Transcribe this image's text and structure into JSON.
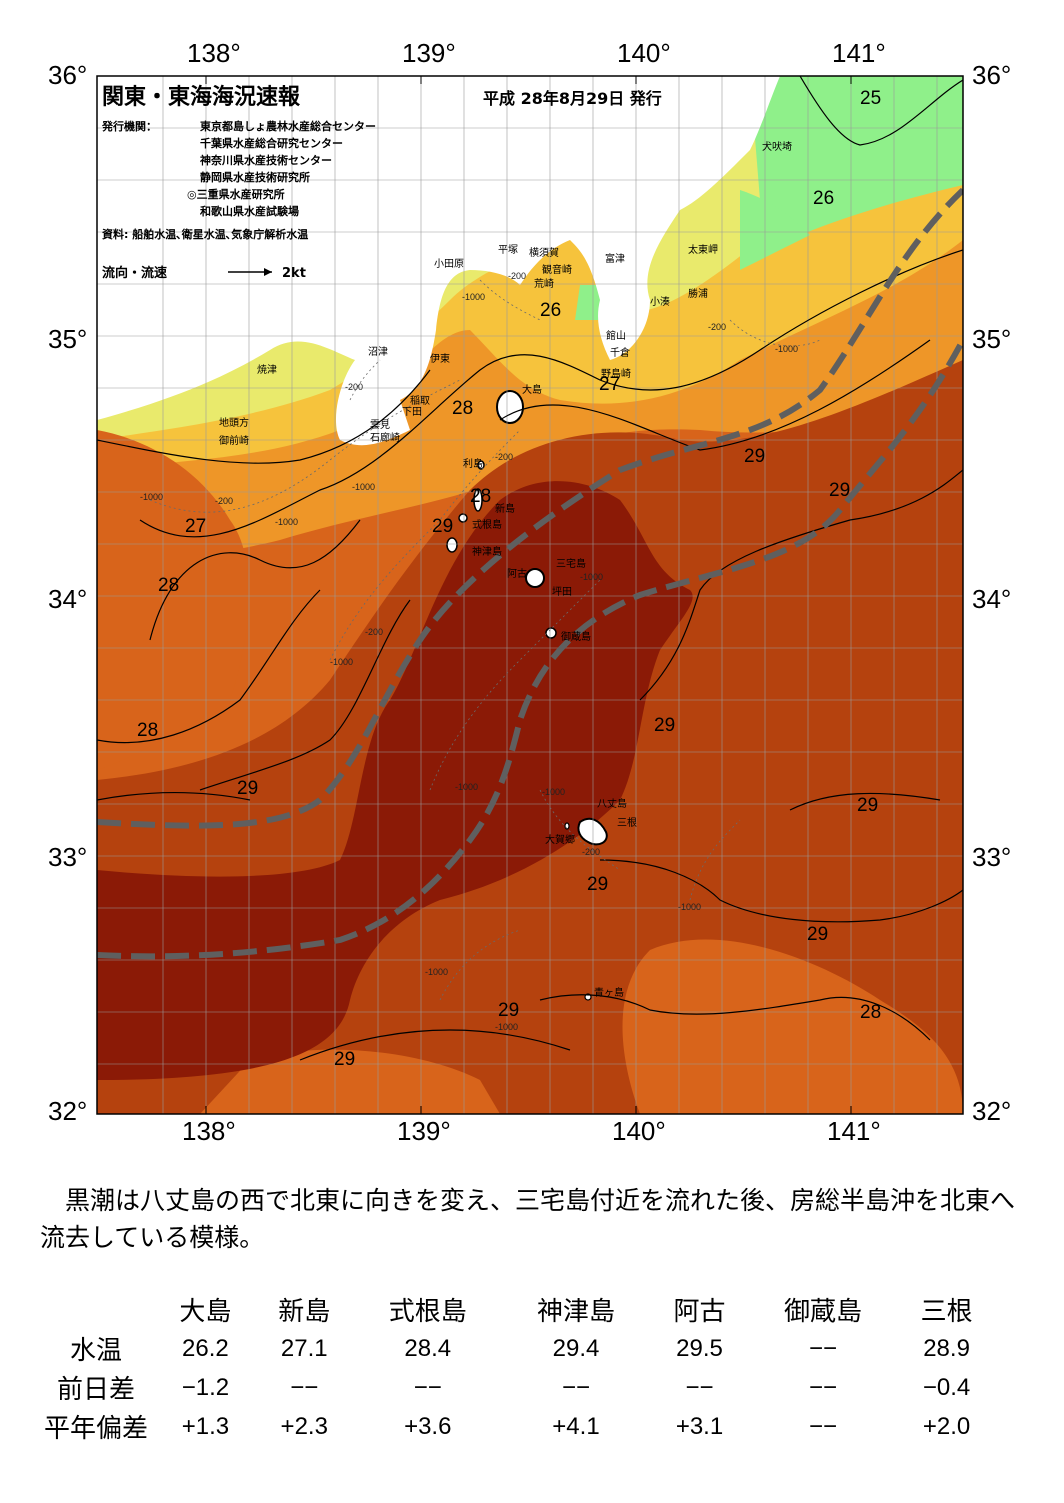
{
  "map": {
    "title": "関東・東海海況速報",
    "issue_date": "平成 28年8月29日 発行",
    "issuer_label": "発行機関：",
    "issuers": [
      "東京都島しょ農林水産総合センター",
      "千葉県水産総合研究センター",
      "神奈川県水産技術センター",
      "静岡県水産技術研究所",
      "◎三重県水産研究所",
      "和歌山県水産試験場"
    ],
    "source": "資料: 船舶水温､衛星水温､気象庁解析水温",
    "current_legend_label": "流向・流速",
    "current_legend_value": "2kt",
    "lon_labels": [
      "138°",
      "139°",
      "140°",
      "141°"
    ],
    "lat_labels": [
      "36°",
      "35°",
      "34°",
      "33°",
      "32°"
    ],
    "place_names": {
      "inubosaki": "犬吠埼",
      "taitomisaki": "太東岬",
      "katsuura": "勝浦",
      "kominato": "小湊",
      "futtsu": "富津",
      "yokosuka": "横須賀",
      "kannonzaki": "観音崎",
      "arasaki": "荒崎",
      "hiratsuka": "平塚",
      "odawara": "小田原",
      "tateyama": "館山",
      "chikura": "千倉",
      "nojimazaki": "野島崎",
      "numazu": "沼津",
      "ito": "伊東",
      "yaizu": "焼津",
      "inatori": "稲取",
      "shimoda": "下田",
      "kumomi": "雲見",
      "irozaki": "石廊崎",
      "jitogata": "地頭方",
      "omaezaki": "御前崎",
      "oshima": "大島",
      "toshima": "利島",
      "niijima": "新島",
      "shikinejima": "式根島",
      "kozushima": "神津島",
      "miyakejima": "三宅島",
      "ako": "阿古",
      "tsubota": "坪田",
      "mikurajima": "御蔵島",
      "hachijojima": "八丈島",
      "mitsune": "三根",
      "okago": "大賀郷",
      "aogashima": "青ヶ島"
    },
    "isotherm_labels": {
      "t25": "25",
      "t26a": "26",
      "t26b": "26",
      "t27a": "27",
      "t27b": "27",
      "t28a": "28",
      "t28b": "28",
      "t28c": "28",
      "t28d": "28",
      "t28e": "28",
      "t29a": "29",
      "t29b": "29",
      "t29c": "29",
      "t29d": "29",
      "t29e": "29",
      "t29f": "29",
      "t29g": "29",
      "t29h": "29",
      "t29i": "29",
      "t29j": "29"
    },
    "depth_labels": {
      "d200": "-200",
      "d1000": "-1000"
    },
    "colors": {
      "kuroshio_axis": "#5f5f5f",
      "sst_29plus": "#8b1a06",
      "sst_29": "#b5420e",
      "sst_28": "#d8641b",
      "sst_27": "#ee9628",
      "sst_26": "#f6c33c",
      "sst_25": "#e9ea6c",
      "sst_cold": "#8ff08a",
      "land": "#ffffff",
      "grid": "#9a9a9a"
    }
  },
  "summary": "黒潮は八丈島の西で北東に向きを変え、三宅島付近を流れた後、房総半島沖を北東へ流去している模様。",
  "table": {
    "columns": [
      "大島",
      "新島",
      "式根島",
      "神津島",
      "阿古",
      "御蔵島",
      "三根"
    ],
    "rows": [
      {
        "label": "水温",
        "values": [
          "26.2",
          "27.1",
          "28.4",
          "29.4",
          "29.5",
          "−−",
          "28.9"
        ]
      },
      {
        "label": "前日差",
        "values": [
          "−1.2",
          "−−",
          "−−",
          "−−",
          "−−",
          "−−",
          "−0.4"
        ]
      },
      {
        "label": "平年偏差",
        "values": [
          "+1.3",
          "+2.3",
          "+3.6",
          "+4.1",
          "+3.1",
          "−−",
          "+2.0"
        ]
      }
    ]
  }
}
